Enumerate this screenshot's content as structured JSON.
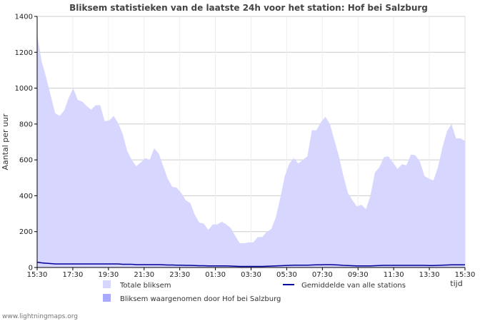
{
  "chart_data": {
    "type": "area",
    "title": "Bliksem statistieken van de laatste 24h voor het station: Hof bei Salzburg",
    "ylabel": "Aantal per uur",
    "xlabel": "tijd",
    "ylim": [
      0,
      1400
    ],
    "yticks": [
      0,
      200,
      400,
      600,
      800,
      1000,
      1200,
      1400
    ],
    "xtick_labels": [
      "15:30",
      "17:30",
      "19:30",
      "21:30",
      "23:30",
      "01:30",
      "03:30",
      "05:30",
      "07:30",
      "09:30",
      "11:30",
      "13:30",
      "15:30"
    ],
    "x_step_minutes": 15,
    "grid": true,
    "series": [
      {
        "name": "Totale bliksem",
        "kind": "area",
        "color": "#d6d6ff",
        "values": [
          1300,
          1150,
          1060,
          960,
          860,
          845,
          875,
          945,
          1000,
          935,
          925,
          900,
          880,
          905,
          905,
          815,
          820,
          845,
          805,
          745,
          650,
          600,
          565,
          585,
          610,
          600,
          665,
          635,
          565,
          495,
          450,
          445,
          415,
          375,
          360,
          295,
          250,
          245,
          210,
          240,
          240,
          255,
          240,
          220,
          175,
          135,
          135,
          140,
          140,
          170,
          170,
          200,
          215,
          280,
          390,
          510,
          580,
          610,
          580,
          600,
          620,
          765,
          765,
          810,
          840,
          800,
          710,
          620,
          510,
          415,
          375,
          340,
          350,
          325,
          400,
          530,
          560,
          615,
          620,
          585,
          550,
          575,
          570,
          630,
          625,
          590,
          510,
          495,
          485,
          560,
          670,
          760,
          800,
          720,
          720,
          705
        ]
      },
      {
        "name": "Bliksem waargenomen door Hof bei Salzburg",
        "kind": "area",
        "color": "#a9a9ff",
        "values": [
          0,
          0,
          0,
          0,
          0,
          0,
          0,
          0,
          0,
          0,
          0,
          0,
          0,
          0,
          0,
          0,
          0,
          0,
          0,
          0,
          0,
          0,
          0,
          0,
          0,
          0,
          0,
          0,
          0,
          0,
          0,
          0,
          0,
          0,
          0,
          0,
          0,
          0,
          0,
          0,
          0,
          0,
          0,
          0,
          0,
          0,
          0,
          0,
          0,
          0,
          0,
          0,
          0,
          0,
          0,
          0,
          0,
          0,
          0,
          0,
          0,
          0,
          0,
          0,
          0,
          0,
          0,
          0,
          0,
          0,
          0,
          0,
          0,
          0,
          0,
          0,
          0,
          0,
          0,
          0,
          0,
          0,
          0,
          0,
          0,
          0,
          0,
          0,
          0,
          0,
          0,
          0,
          0,
          0,
          0,
          0
        ]
      },
      {
        "name": "Gemiddelde van alle stations",
        "kind": "line",
        "color": "#000099",
        "values": [
          30,
          26,
          24,
          22,
          20,
          20,
          20,
          20,
          20,
          20,
          20,
          20,
          20,
          20,
          20,
          20,
          20,
          20,
          20,
          18,
          18,
          18,
          16,
          16,
          16,
          16,
          16,
          16,
          15,
          14,
          14,
          13,
          13,
          12,
          12,
          11,
          10,
          10,
          9,
          9,
          9,
          9,
          9,
          8,
          7,
          6,
          6,
          6,
          6,
          6,
          6,
          7,
          8,
          9,
          10,
          11,
          12,
          13,
          13,
          13,
          13,
          14,
          15,
          15,
          16,
          16,
          15,
          14,
          12,
          11,
          10,
          9,
          9,
          9,
          9,
          10,
          11,
          12,
          12,
          12,
          12,
          12,
          12,
          12,
          12,
          12,
          12,
          11,
          11,
          12,
          13,
          14,
          15,
          15,
          15,
          15
        ]
      }
    ]
  },
  "legend": [
    {
      "label": "Totale bliksem",
      "color": "#d6d6ff",
      "kind": "swatch"
    },
    {
      "label": "Bliksem waargenomen door Hof bei Salzburg",
      "color": "#a9a9ff",
      "kind": "swatch"
    },
    {
      "label": "Gemiddelde van alle stations",
      "color": "#000099",
      "kind": "line"
    }
  ],
  "footer": "www.lightningmaps.org"
}
